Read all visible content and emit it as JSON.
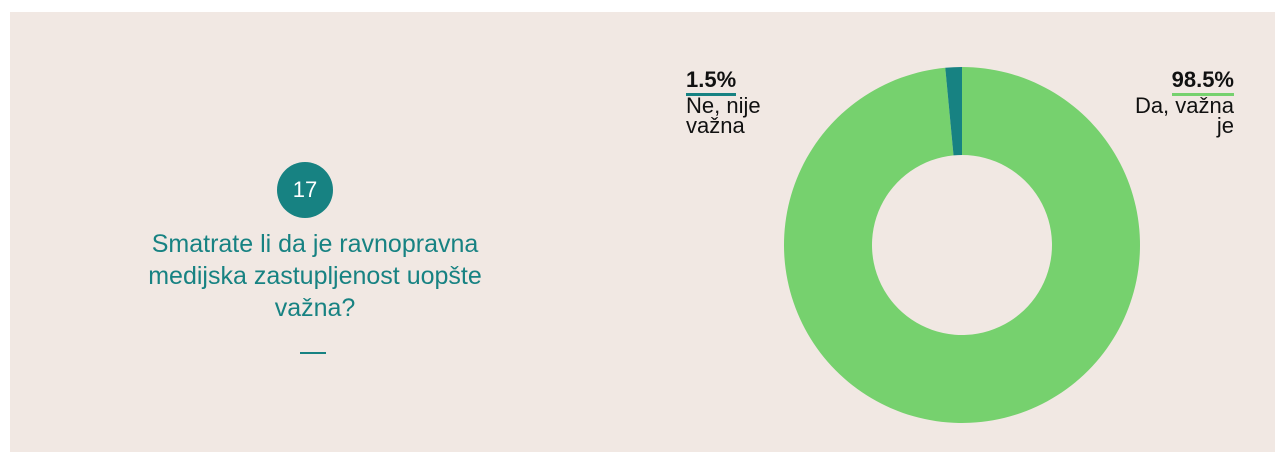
{
  "question_number": 17,
  "chart_data": {
    "type": "donut",
    "title": "Smatrate li da je ravnopravna medijska zastupljenost uopšte važna?",
    "categories": [
      "Da, važna je",
      "Ne, nije važna"
    ],
    "values": [
      98.5,
      1.5
    ],
    "value_labels": [
      "98.5%",
      "1.5%"
    ],
    "colors": [
      "#76d16e",
      "#178282"
    ]
  }
}
